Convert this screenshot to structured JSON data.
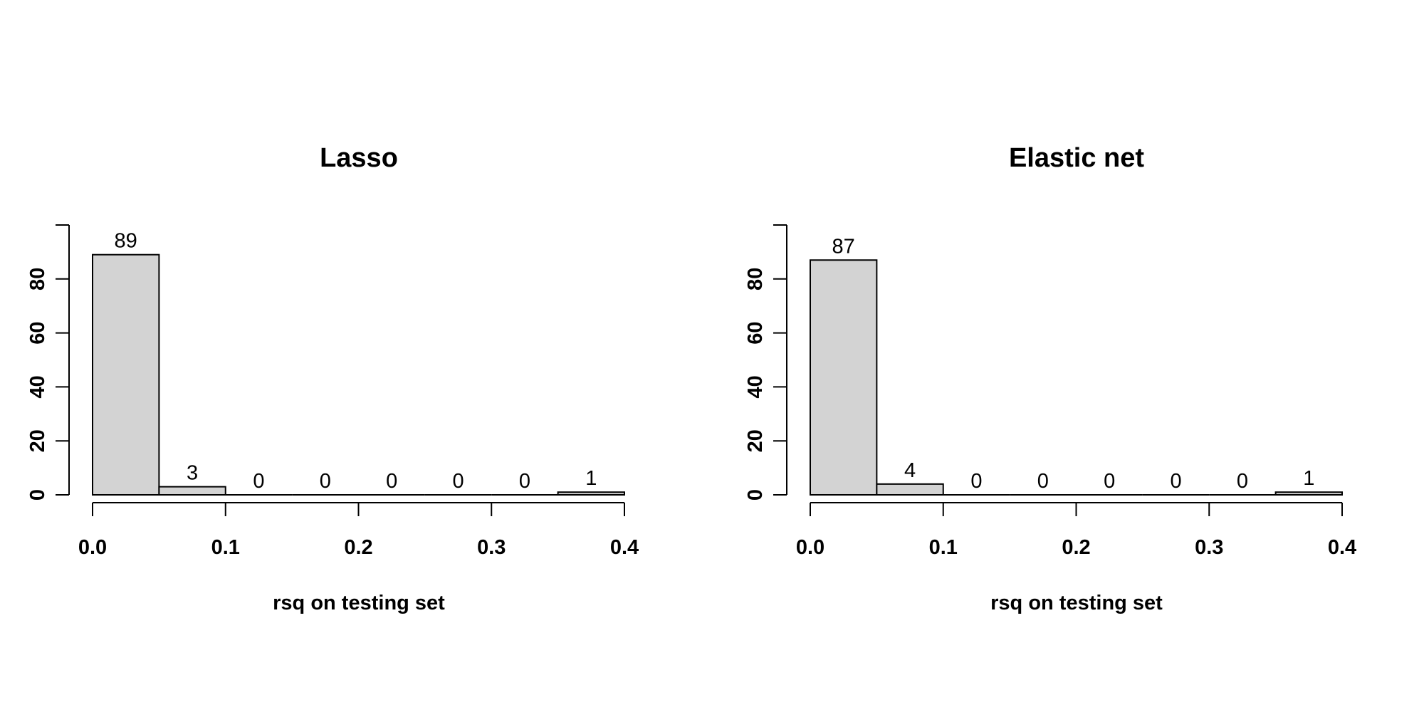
{
  "chart_data": [
    {
      "type": "bar",
      "title": "Lasso",
      "xlabel": "rsq on testing set",
      "ylabel": "",
      "bin_edges": [
        0.0,
        0.05,
        0.1,
        0.15,
        0.2,
        0.25,
        0.3,
        0.35,
        0.4
      ],
      "values": [
        89,
        3,
        0,
        0,
        0,
        0,
        0,
        1
      ],
      "count_labels": [
        "89",
        "3",
        "0",
        "0",
        "0",
        "0",
        "0",
        "1"
      ],
      "xlim": [
        0.0,
        0.4
      ],
      "ylim": [
        0,
        100
      ],
      "x_ticks": [
        0.0,
        0.1,
        0.2,
        0.3,
        0.4
      ],
      "x_tick_labels": [
        "0.0",
        "0.1",
        "0.2",
        "0.3",
        "0.4"
      ],
      "y_ticks": [
        0,
        20,
        40,
        60,
        80
      ],
      "y_tick_labels": [
        "0",
        "20",
        "40",
        "60",
        "80"
      ],
      "grid": false,
      "bar_color": "#d3d3d3"
    },
    {
      "type": "bar",
      "title": "Elastic net",
      "xlabel": "rsq on testing set",
      "ylabel": "",
      "bin_edges": [
        0.0,
        0.05,
        0.1,
        0.15,
        0.2,
        0.25,
        0.3,
        0.35,
        0.4
      ],
      "values": [
        87,
        4,
        0,
        0,
        0,
        0,
        0,
        1
      ],
      "count_labels": [
        "87",
        "4",
        "0",
        "0",
        "0",
        "0",
        "0",
        "1"
      ],
      "xlim": [
        0.0,
        0.4
      ],
      "ylim": [
        0,
        100
      ],
      "x_ticks": [
        0.0,
        0.1,
        0.2,
        0.3,
        0.4
      ],
      "x_tick_labels": [
        "0.0",
        "0.1",
        "0.2",
        "0.3",
        "0.4"
      ],
      "y_ticks": [
        0,
        20,
        40,
        60,
        80
      ],
      "y_tick_labels": [
        "0",
        "20",
        "40",
        "60",
        "80"
      ],
      "grid": false,
      "bar_color": "#d3d3d3"
    }
  ]
}
